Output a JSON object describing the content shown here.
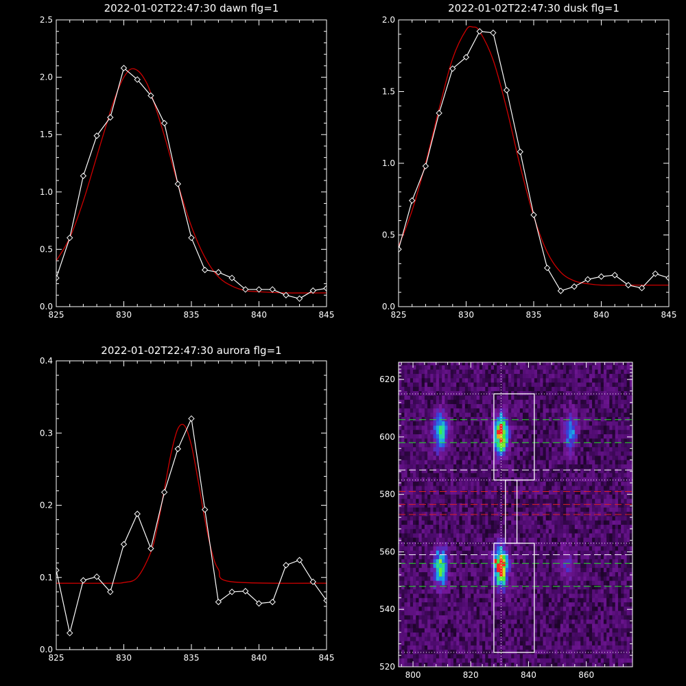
{
  "chart_data": [
    {
      "type": "line",
      "title": "2022-01-02T22:47:30 dawn flg=1",
      "xlim": [
        825,
        845
      ],
      "ylim": [
        0,
        2.5
      ],
      "xticks": [
        825,
        830,
        835,
        840,
        845
      ],
      "yticks": [
        0.0,
        0.5,
        1.0,
        1.5,
        2.0,
        2.5
      ],
      "ytick_labels": [
        "0.0",
        "0.5",
        "1.0",
        "1.5",
        "2.0",
        "2.5"
      ],
      "series": [
        {
          "color": "#ffffff",
          "marker": "diamond",
          "x": [
            825,
            826,
            827,
            828,
            829,
            830,
            831,
            832,
            833,
            834,
            835,
            836,
            837,
            838,
            839,
            840,
            841,
            842,
            843,
            844,
            845
          ],
          "y": [
            0.25,
            0.6,
            1.14,
            1.49,
            1.65,
            2.08,
            1.98,
            1.84,
            1.6,
            1.07,
            0.6,
            0.32,
            0.3,
            0.25,
            0.15,
            0.15,
            0.15,
            0.1,
            0.07,
            0.14,
            0.16
          ]
        },
        {
          "color": "#d00000",
          "fit": "gaussian",
          "x": [
            825,
            826,
            827,
            828,
            829,
            829.5,
            830,
            830.5,
            831,
            831.5,
            832,
            833,
            834,
            835,
            836,
            837,
            838,
            839,
            840,
            842,
            845
          ],
          "y": [
            0.4,
            0.6,
            0.92,
            1.31,
            1.7,
            1.87,
            2.0,
            2.07,
            2.06,
            1.99,
            1.86,
            1.49,
            1.07,
            0.7,
            0.43,
            0.26,
            0.18,
            0.14,
            0.13,
            0.12,
            0.12
          ]
        }
      ]
    },
    {
      "type": "line",
      "title": "2022-01-02T22:47:30 dusk flg=1",
      "xlim": [
        825,
        845
      ],
      "ylim": [
        0,
        2.0
      ],
      "xticks": [
        825,
        830,
        835,
        840,
        845
      ],
      "yticks": [
        0.0,
        0.5,
        1.0,
        1.5,
        2.0
      ],
      "ytick_labels": [
        "0.0",
        "0.5",
        "1.0",
        "1.5",
        "2.0"
      ],
      "series": [
        {
          "color": "#ffffff",
          "marker": "diamond",
          "x": [
            825,
            826,
            827,
            828,
            829,
            830,
            831,
            832,
            833,
            834,
            835,
            836,
            837,
            838,
            839,
            840,
            841,
            842,
            843,
            844,
            845
          ],
          "y": [
            0.4,
            0.74,
            0.98,
            1.35,
            1.66,
            1.74,
            1.92,
            1.91,
            1.51,
            1.08,
            0.64,
            0.27,
            0.11,
            0.14,
            0.19,
            0.21,
            0.22,
            0.15,
            0.13,
            0.23,
            0.2
          ]
        },
        {
          "color": "#d00000",
          "fit": "gaussian",
          "x": [
            825,
            826,
            827,
            828,
            829,
            830,
            830.5,
            831,
            832,
            833,
            834,
            835,
            836,
            837,
            838,
            839,
            840,
            842,
            845
          ],
          "y": [
            0.42,
            0.67,
            1.0,
            1.38,
            1.73,
            1.93,
            1.95,
            1.92,
            1.72,
            1.38,
            0.98,
            0.63,
            0.38,
            0.24,
            0.18,
            0.16,
            0.15,
            0.15,
            0.15
          ]
        }
      ]
    },
    {
      "type": "line",
      "title": "2022-01-02T22:47:30 aurora flg=1",
      "xlim": [
        825,
        845
      ],
      "ylim": [
        0,
        0.4
      ],
      "xticks": [
        825,
        830,
        835,
        840,
        845
      ],
      "yticks": [
        0.0,
        0.1,
        0.2,
        0.3,
        0.4
      ],
      "ytick_labels": [
        "0.0",
        "0.1",
        "0.2",
        "0.3",
        "0.4"
      ],
      "series": [
        {
          "color": "#ffffff",
          "marker": "diamond",
          "x": [
            825,
            826,
            827,
            828,
            829,
            830,
            831,
            832,
            833,
            834,
            835,
            836,
            837,
            838,
            839,
            840,
            841,
            842,
            843,
            844,
            845
          ],
          "y": [
            0.11,
            0.023,
            0.096,
            0.101,
            0.08,
            0.146,
            0.188,
            0.14,
            0.218,
            0.278,
            0.32,
            0.194,
            0.066,
            0.08,
            0.081,
            0.064,
            0.066,
            0.117,
            0.124,
            0.094,
            0.068
          ]
        },
        {
          "color": "#d00000",
          "fit": "gaussian",
          "x": [
            825,
            829,
            830,
            831,
            832,
            832.5,
            833,
            833.5,
            834,
            834.5,
            835,
            835.5,
            836,
            836.5,
            837,
            838,
            845
          ],
          "y": [
            0.092,
            0.092,
            0.093,
            0.1,
            0.135,
            0.172,
            0.222,
            0.272,
            0.306,
            0.31,
            0.283,
            0.234,
            0.18,
            0.136,
            0.111,
            0.094,
            0.092
          ]
        }
      ]
    },
    {
      "type": "heatmap",
      "xlim": [
        795,
        876
      ],
      "ylim": [
        520,
        626
      ],
      "xticks": [
        800,
        820,
        840,
        860
      ],
      "yticks": [
        520,
        540,
        560,
        580,
        600,
        620
      ],
      "colormap": [
        "#000000",
        "#4a0a6a",
        "#7a1aa0",
        "#3a3ad8",
        "#1a9cf0",
        "#2ad8a8",
        "#3cf03c",
        "#d8e020",
        "#ff2020"
      ],
      "blobs": [
        {
          "x": 809,
          "y": 601,
          "peak": 0.58
        },
        {
          "x": 830,
          "y": 600,
          "peak": 0.92
        },
        {
          "x": 854,
          "y": 601,
          "peak": 0.36
        },
        {
          "x": 809,
          "y": 554,
          "peak": 0.62
        },
        {
          "x": 830,
          "y": 554,
          "peak": 0.95
        },
        {
          "x": 853,
          "y": 555,
          "peak": 0.18
        }
      ],
      "red_pixels": [
        {
          "x": 830,
          "y": 603
        },
        {
          "x": 828,
          "y": 556
        },
        {
          "x": 831,
          "y": 555
        }
      ],
      "vertical_dotted_x": 830.5,
      "white_dotted_y": [
        615,
        585,
        563,
        525
      ],
      "white_dashed_y": [
        588.5,
        559
      ],
      "green_dashed_y": [
        606,
        598,
        556,
        548
      ],
      "red_dashed_y": [
        581,
        576.5,
        573
      ],
      "boxes": [
        {
          "x0": 828,
          "x1": 842,
          "y0": 585,
          "y1": 615
        },
        {
          "x0": 832,
          "x1": 836,
          "y0": 563,
          "y1": 585
        },
        {
          "x0": 828,
          "x1": 842,
          "y0": 525,
          "y1": 563
        }
      ]
    }
  ]
}
